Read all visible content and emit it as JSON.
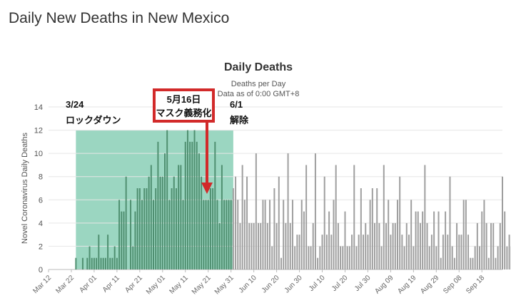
{
  "page": {
    "title": "Daily New Deaths in New Mexico"
  },
  "colors": {
    "bar": "#9e9e9e",
    "bar_in_band": "#4f8f70",
    "band": "#9bd6c1",
    "arrow": "#d22a2a",
    "box_border": "#d22a2a"
  },
  "annotations": {
    "lockdown_date": "3/24",
    "lockdown_label": "ロックダウン",
    "mask_date": "5月16日",
    "mask_label": "マスク義務化",
    "lift_date": "6/1",
    "lift_label": "解除"
  },
  "chart_data": {
    "type": "bar",
    "title": "Daily Deaths",
    "subtitle": "Deaths per Day",
    "note": "Data as of 0:00 GMT+8",
    "ylabel": "Novel Coronavirus Daily Deaths",
    "xlabel": "",
    "ylim": [
      0,
      14
    ],
    "yticks": [
      0,
      2,
      4,
      6,
      8,
      10,
      12,
      14
    ],
    "xlim": [
      "2020-03-12",
      "2020-09-27"
    ],
    "xticks": [
      "Mar 12",
      "Mar 22",
      "Apr 01",
      "Apr 11",
      "Apr 21",
      "May 01",
      "May 11",
      "May 21",
      "May 31",
      "Jun 10",
      "Jun 20",
      "Jun 30",
      "Jul 10",
      "Jul 20",
      "Jul 30",
      "Aug 09",
      "Aug 19",
      "Aug 29",
      "Sep 08",
      "Sep 18"
    ],
    "grid": "horizontal",
    "legend": "none",
    "band": {
      "start": "2020-03-24",
      "end": "2020-06-01"
    },
    "start_date": "2020-03-24",
    "values": [
      1,
      0,
      0,
      1,
      0,
      1,
      2,
      1,
      1,
      1,
      3,
      1,
      1,
      1,
      3,
      1,
      1,
      2,
      1,
      6,
      5,
      5,
      8,
      0,
      6,
      2,
      5,
      7,
      7,
      6,
      7,
      7,
      8,
      9,
      6,
      7,
      11,
      8,
      8,
      10,
      12,
      6,
      7,
      8,
      7,
      9,
      9,
      6,
      11,
      12,
      11,
      11,
      12,
      11,
      10,
      8,
      6,
      6,
      6,
      7,
      7,
      11,
      6,
      4,
      9,
      6,
      6,
      6,
      6,
      7,
      8,
      6,
      4,
      9,
      6,
      8,
      4,
      4,
      4,
      10,
      4,
      4,
      6,
      6,
      4,
      6,
      2,
      7,
      4,
      8,
      1,
      6,
      4,
      10,
      4,
      6,
      2,
      3,
      3,
      6,
      5,
      9,
      2,
      2,
      4,
      10,
      1,
      2,
      3,
      8,
      3,
      5,
      3,
      6,
      9,
      4,
      2,
      2,
      5,
      2,
      2,
      3,
      9,
      2,
      3,
      7,
      3,
      4,
      3,
      6,
      7,
      4,
      7,
      4,
      2,
      9,
      4,
      6,
      3,
      4,
      4,
      6,
      8,
      3,
      2,
      4,
      3,
      6,
      2,
      5,
      5,
      4,
      5,
      9,
      4,
      2,
      3,
      5,
      2,
      5,
      1,
      3,
      5,
      3,
      8,
      2,
      1,
      4,
      3,
      3,
      6,
      6,
      3,
      1,
      1,
      2,
      4,
      2,
      5,
      6,
      4,
      1,
      4,
      4,
      1,
      2,
      4,
      8,
      5,
      2,
      3,
      2,
      4,
      2,
      4,
      2,
      6
    ]
  }
}
